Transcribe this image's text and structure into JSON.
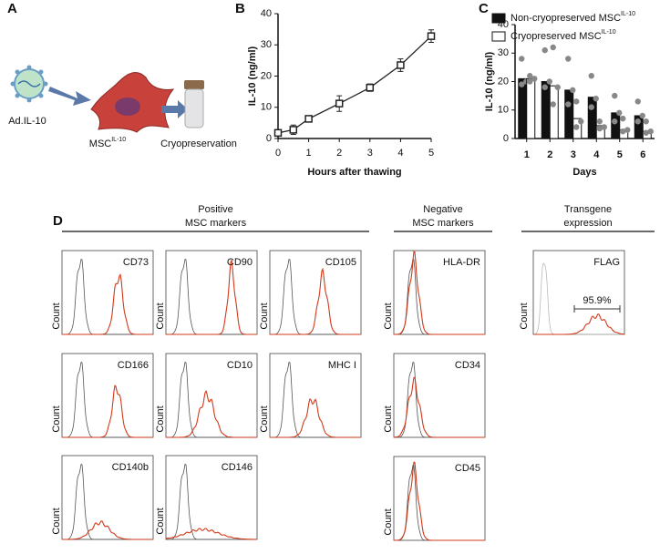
{
  "panel_labels": [
    "A",
    "B",
    "C",
    "D"
  ],
  "diagram": {
    "virus_label": "Ad.IL-10",
    "cell_label": "MSC",
    "cell_label_sup": "IL-10",
    "tube_label": "Cryopreservation"
  },
  "chart_data": [
    {
      "type": "line",
      "ylabel": "IL-10 (ng/ml)",
      "xlabel": "Hours after thawing",
      "x": [
        0,
        0.5,
        1,
        2,
        3,
        4,
        5
      ],
      "values": [
        1.8,
        2.8,
        6.3,
        11.2,
        16.3,
        23.5,
        32.8
      ],
      "errors": [
        0.3,
        1.5,
        0.8,
        2.5,
        1.2,
        2.0,
        2.0
      ],
      "color": "#222222",
      "xlim": [
        0,
        5
      ],
      "xticks": [
        0,
        1,
        2,
        3,
        4,
        5
      ],
      "ylim": [
        0,
        40
      ],
      "yticks": [
        0,
        10,
        20,
        30,
        40
      ]
    },
    {
      "type": "bar",
      "ylabel": "IL-10 (ng/ml)",
      "xlabel": "Days",
      "categories": [
        "1",
        "2",
        "3",
        "4",
        "5",
        "6"
      ],
      "series": [
        {
          "name": "Non-cryopreserved MSC",
          "name_sup": "IL-10",
          "color": "#111111",
          "values": [
            21,
            20,
            17,
            14.5,
            9,
            8
          ],
          "points": [
            [
              28,
              20,
              19
            ],
            [
              31,
              20,
              18
            ],
            [
              28,
              17,
              12
            ],
            [
              22,
              14,
              11
            ],
            [
              15,
              9,
              6
            ],
            [
              13,
              8,
              6
            ]
          ]
        },
        {
          "name": "Cryopreserved MSC",
          "name_sup": "IL-10",
          "color": "#ffffff",
          "values": [
            21,
            18.5,
            7,
            4.5,
            3,
            2.5
          ],
          "points": [
            [
              22,
              21,
              20
            ],
            [
              32,
              18,
              12
            ],
            [
              13,
              6,
              4
            ],
            [
              6,
              4,
              3.5
            ],
            [
              7,
              3,
              2.5
            ],
            [
              6,
              2.5,
              2
            ]
          ]
        }
      ],
      "point_color": "#888888",
      "ylim": [
        0,
        40
      ],
      "yticks": [
        0,
        10,
        20,
        30,
        40
      ]
    }
  ],
  "flow": {
    "y_axis_label": "Count",
    "gate_label": "95.9%",
    "groups": [
      {
        "title_lines": [
          "Positive",
          "MSC markers"
        ],
        "markers": [
          "CD73",
          "CD90",
          "CD105",
          "CD166",
          "CD10",
          "MHC I",
          "CD140b",
          "CD146"
        ]
      },
      {
        "title_lines": [
          "Negative",
          "MSC markers"
        ],
        "markers": [
          "HLA-DR",
          "CD34",
          "CD45"
        ]
      },
      {
        "title_lines": [
          "Transgene",
          "expression"
        ],
        "markers": [
          "FLAG"
        ]
      }
    ]
  }
}
